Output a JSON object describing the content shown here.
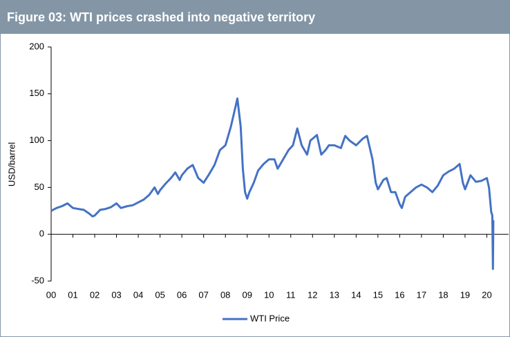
{
  "chart_data": {
    "type": "line",
    "title": "Figure 03: WTI prices crashed into negative territory",
    "y_label": "USD/barrel",
    "x": [
      0.0,
      0.25,
      0.5,
      0.75,
      1.0,
      1.25,
      1.5,
      1.75,
      1.9,
      2.0,
      2.25,
      2.5,
      2.75,
      3.0,
      3.2,
      3.5,
      3.75,
      4.0,
      4.25,
      4.5,
      4.75,
      4.9,
      5.0,
      5.25,
      5.5,
      5.7,
      5.9,
      6.0,
      6.25,
      6.5,
      6.75,
      7.0,
      7.25,
      7.5,
      7.75,
      8.0,
      8.25,
      8.5,
      8.55,
      8.7,
      8.8,
      8.9,
      9.0,
      9.1,
      9.3,
      9.5,
      9.75,
      10.0,
      10.25,
      10.4,
      10.6,
      10.9,
      11.1,
      11.3,
      11.5,
      11.75,
      11.9,
      12.2,
      12.4,
      12.6,
      12.75,
      13.0,
      13.3,
      13.5,
      13.7,
      14.0,
      14.3,
      14.5,
      14.75,
      14.9,
      15.0,
      15.25,
      15.4,
      15.6,
      15.8,
      16.0,
      16.1,
      16.25,
      16.5,
      16.75,
      17.0,
      17.25,
      17.5,
      17.75,
      18.0,
      18.25,
      18.5,
      18.75,
      18.9,
      19.0,
      19.25,
      19.5,
      19.75,
      20.0,
      20.1,
      20.2,
      20.25,
      20.28,
      20.3
    ],
    "series": [
      {
        "name": "WTI Price",
        "color": "#4472c4",
        "values": [
          25,
          28,
          30,
          33,
          28,
          27,
          26,
          22,
          19,
          20,
          26,
          27,
          29,
          33,
          28,
          30,
          31,
          34,
          37,
          42,
          50,
          43,
          47,
          54,
          60,
          66,
          58,
          63,
          70,
          74,
          60,
          55,
          64,
          74,
          90,
          95,
          115,
          140,
          145,
          115,
          70,
          45,
          38,
          45,
          55,
          68,
          75,
          80,
          80,
          70,
          78,
          90,
          95,
          113,
          95,
          85,
          100,
          106,
          85,
          90,
          95,
          95,
          92,
          105,
          100,
          95,
          102,
          105,
          80,
          55,
          48,
          58,
          60,
          45,
          45,
          32,
          28,
          40,
          45,
          50,
          53,
          50,
          45,
          52,
          63,
          67,
          70,
          75,
          55,
          48,
          63,
          56,
          57,
          60,
          50,
          24,
          20,
          -37,
          15
        ]
      }
    ],
    "xlim": [
      0,
      21
    ],
    "xticks": [
      {
        "value": 0,
        "label": "00"
      },
      {
        "value": 1,
        "label": "01"
      },
      {
        "value": 2,
        "label": "02"
      },
      {
        "value": 3,
        "label": "03"
      },
      {
        "value": 4,
        "label": "04"
      },
      {
        "value": 5,
        "label": "05"
      },
      {
        "value": 6,
        "label": "06"
      },
      {
        "value": 7,
        "label": "07"
      },
      {
        "value": 8,
        "label": "08"
      },
      {
        "value": 9,
        "label": "09"
      },
      10,
      11,
      12,
      13,
      14,
      15,
      16,
      17,
      18,
      19,
      20
    ],
    "ylim": [
      -50,
      200
    ],
    "yticks": [
      -50,
      0,
      50,
      100,
      150,
      200
    ],
    "legend": "bottom"
  }
}
